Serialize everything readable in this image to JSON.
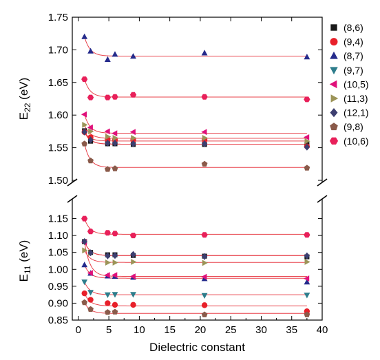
{
  "chart_data": {
    "type": "scatter",
    "xlabel": "Dielectric constant",
    "xlim": [
      -1,
      40
    ],
    "x_ticks": [
      "0",
      "5",
      "10",
      "15",
      "20",
      "25",
      "30",
      "35",
      "40"
    ],
    "top_panel": {
      "ylabel_main": "E",
      "ylabel_sub": "22",
      "ylabel_unit": " (eV)",
      "ylim": [
        1.5,
        1.75
      ],
      "y_ticks": [
        "1.50",
        "1.55",
        "1.60",
        "1.65",
        "1.70",
        "1.75"
      ]
    },
    "bottom_panel": {
      "ylabel_main": "E",
      "ylabel_sub": "11",
      "ylabel_unit": " (eV)",
      "ylim": [
        0.85,
        1.2
      ],
      "y_ticks": [
        "0.85",
        "0.90",
        "0.95",
        "1.00",
        "1.05",
        "1.10",
        "1.15"
      ]
    },
    "fit_color": "#e8414a",
    "series": [
      {
        "name": "(8,6)",
        "color": "#1a1a1a",
        "marker": "square",
        "E22": [
          [
            1,
            1.576
          ],
          [
            2,
            1.56
          ],
          [
            4.8,
            1.556
          ],
          [
            6,
            1.556
          ],
          [
            9,
            1.555
          ],
          [
            20.7,
            1.555
          ],
          [
            37.5,
            1.555
          ]
        ],
        "E11": [
          [
            1,
            1.082
          ],
          [
            2,
            1.05
          ],
          [
            4.8,
            1.043
          ],
          [
            6,
            1.043
          ],
          [
            9,
            1.041
          ],
          [
            20.7,
            1.039
          ],
          [
            37.5,
            1.037
          ]
        ]
      },
      {
        "name": "(9,4)",
        "color": "#e8202a",
        "marker": "circle",
        "E22": [
          [
            1,
            1.574
          ],
          [
            2,
            1.566
          ],
          [
            4.8,
            1.563
          ],
          [
            6,
            1.562
          ],
          [
            9,
            1.562
          ],
          [
            20.7,
            1.562
          ],
          [
            37.5,
            1.552
          ]
        ],
        "E11": [
          [
            1,
            0.929
          ],
          [
            2,
            0.91
          ],
          [
            4.8,
            0.9
          ],
          [
            6,
            0.895
          ],
          [
            9,
            0.895
          ],
          [
            20.7,
            0.894
          ],
          [
            37.5,
            0.876
          ]
        ]
      },
      {
        "name": "(8,7)",
        "color": "#252b8c",
        "marker": "triangle-up",
        "E22": [
          [
            1,
            1.72
          ],
          [
            2,
            1.698
          ],
          [
            4.8,
            1.685
          ],
          [
            6,
            1.693
          ],
          [
            9,
            1.69
          ],
          [
            20.7,
            1.695
          ],
          [
            37.5,
            1.689
          ]
        ],
        "E11": [
          [
            1,
            1.013
          ],
          [
            2,
            0.988
          ],
          [
            4.8,
            0.98
          ],
          [
            6,
            0.979
          ],
          [
            9,
            0.976
          ],
          [
            20.7,
            0.972
          ],
          [
            37.5,
            0.962
          ]
        ]
      },
      {
        "name": "(9,7)",
        "color": "#2e7d8c",
        "marker": "triangle-down",
        "E22": [],
        "E11": [
          [
            1,
            0.963
          ],
          [
            2,
            0.932
          ],
          [
            4.8,
            0.925
          ],
          [
            6,
            0.926
          ],
          [
            9,
            0.926
          ],
          [
            20.7,
            0.923
          ],
          [
            37.5,
            0.924
          ]
        ]
      },
      {
        "name": "(10,5)",
        "color": "#e0107a",
        "marker": "triangle-left",
        "E22": [
          [
            1,
            1.601
          ],
          [
            2,
            1.581
          ],
          [
            4.8,
            1.575
          ],
          [
            6,
            1.572
          ],
          [
            9,
            1.574
          ],
          [
            20.7,
            1.574
          ],
          [
            37.5,
            1.566
          ]
        ],
        "E11": [
          [
            1,
            1.08
          ],
          [
            2,
            0.989
          ],
          [
            4.8,
            0.983
          ],
          [
            6,
            0.983
          ],
          [
            9,
            0.979
          ],
          [
            20.7,
            0.978
          ],
          [
            37.5,
            0.973
          ]
        ]
      },
      {
        "name": "(11,3)",
        "color": "#9c9458",
        "marker": "triangle-right",
        "E22": [
          [
            1,
            1.585
          ],
          [
            2,
            1.575
          ],
          [
            4.8,
            1.567
          ],
          [
            6,
            1.565
          ],
          [
            9,
            1.565
          ],
          [
            20.7,
            1.565
          ],
          [
            37.5,
            1.56
          ]
        ],
        "E11": [
          [
            1,
            1.056
          ],
          [
            2,
            1.048
          ],
          [
            4.8,
            1.02
          ],
          [
            6,
            1.02
          ],
          [
            9,
            1.022
          ],
          [
            20.7,
            1.019
          ],
          [
            37.5,
            1.022
          ]
        ]
      },
      {
        "name": "(12,1)",
        "color": "#3d3f70",
        "marker": "diamond",
        "E22": [
          [
            1,
            1.574
          ],
          [
            2,
            1.562
          ],
          [
            4.8,
            1.557
          ],
          [
            6,
            1.557
          ],
          [
            9,
            1.556
          ],
          [
            20.7,
            1.556
          ],
          [
            37.5,
            1.551
          ]
        ],
        "E11": [
          [
            1,
            1.082
          ],
          [
            2,
            1.049
          ],
          [
            4.8,
            1.04
          ],
          [
            6,
            1.041
          ],
          [
            9,
            1.044
          ],
          [
            20.7,
            1.038
          ],
          [
            37.5,
            1.04
          ]
        ]
      },
      {
        "name": "(9,8)",
        "color": "#8a5a4a",
        "marker": "pentagon",
        "E22": [
          [
            1,
            1.556
          ],
          [
            2,
            1.53
          ],
          [
            4.8,
            1.517
          ],
          [
            6,
            1.518
          ],
          [
            20.7,
            1.525
          ],
          [
            37.5,
            1.519
          ]
        ],
        "E11": [
          [
            1,
            0.902
          ],
          [
            2,
            0.882
          ],
          [
            4.8,
            0.873
          ],
          [
            6,
            0.874
          ],
          [
            20.7,
            0.866
          ],
          [
            37.5,
            0.866
          ]
        ]
      },
      {
        "name": "(10,6)",
        "color": "#e8205a",
        "marker": "hexagon",
        "E22": [
          [
            1,
            1.655
          ],
          [
            2,
            1.627
          ],
          [
            4.8,
            1.627
          ],
          [
            6,
            1.628
          ],
          [
            9,
            1.631
          ],
          [
            20.7,
            1.628
          ],
          [
            37.5,
            1.624
          ]
        ],
        "E11": [
          [
            1,
            1.15
          ],
          [
            2,
            1.112
          ],
          [
            4.8,
            1.108
          ],
          [
            6,
            1.106
          ],
          [
            9,
            1.1
          ],
          [
            20.7,
            1.102
          ],
          [
            37.5,
            1.102
          ]
        ]
      }
    ]
  }
}
